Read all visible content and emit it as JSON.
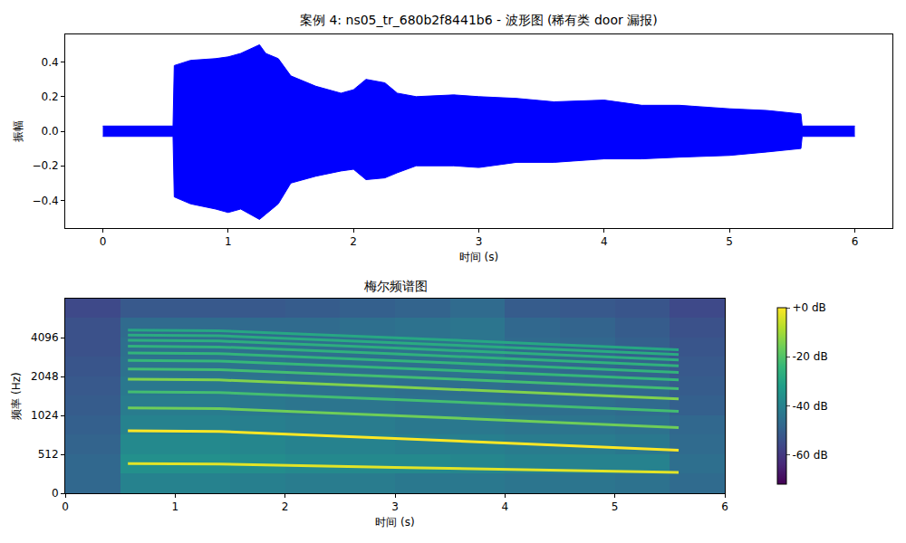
{
  "chart_data": [
    {
      "type": "area",
      "title": "案例 4: ns05_tr_680b2f8441b6 - 波形图 (稀有类 door 漏报)",
      "xlabel": "时间 (s)",
      "ylabel": "振幅",
      "color": "#0000ff",
      "x": [
        0,
        0.56,
        0.57,
        0.7,
        0.9,
        1.0,
        1.1,
        1.25,
        1.3,
        1.4,
        1.5,
        1.7,
        1.9,
        2.0,
        2.1,
        2.25,
        2.35,
        2.5,
        2.8,
        3.0,
        3.3,
        3.6,
        4.0,
        4.3,
        4.6,
        5.0,
        5.3,
        5.57,
        5.58,
        6.0
      ],
      "upper": [
        0.03,
        0.03,
        0.38,
        0.41,
        0.42,
        0.43,
        0.45,
        0.5,
        0.45,
        0.42,
        0.32,
        0.26,
        0.22,
        0.24,
        0.3,
        0.28,
        0.22,
        0.2,
        0.21,
        0.2,
        0.19,
        0.17,
        0.18,
        0.15,
        0.15,
        0.13,
        0.12,
        0.1,
        0.03,
        0.03
      ],
      "lower": [
        -0.03,
        -0.03,
        -0.38,
        -0.42,
        -0.45,
        -0.47,
        -0.45,
        -0.51,
        -0.48,
        -0.42,
        -0.3,
        -0.26,
        -0.23,
        -0.22,
        -0.28,
        -0.27,
        -0.24,
        -0.2,
        -0.2,
        -0.21,
        -0.18,
        -0.18,
        -0.16,
        -0.16,
        -0.15,
        -0.14,
        -0.12,
        -0.1,
        -0.03,
        -0.03
      ],
      "xlim": [
        -0.3,
        6.3
      ],
      "xticks": [
        0,
        1,
        2,
        3,
        4,
        5,
        6
      ],
      "ylim": [
        -0.56,
        0.56
      ],
      "yticks": [
        {
          "value": -0.4,
          "label": "−0.4"
        },
        {
          "value": -0.2,
          "label": "−0.2"
        },
        {
          "value": 0,
          "label": "0.0"
        },
        0.2,
        0.4
      ],
      "grid": false
    },
    {
      "type": "heatmap",
      "title": "梅尔频谱图",
      "xlabel": "时间 (s)",
      "ylabel": "频率 (Hz)",
      "color": "viridis",
      "xlim": [
        0,
        6
      ],
      "xticks": [
        0,
        1,
        2,
        3,
        4,
        5,
        6
      ],
      "ylim": [
        0,
        8192
      ],
      "yticks": [
        0,
        512,
        1024,
        2048,
        4096
      ],
      "grid": false,
      "colorbar": {
        "zlim": [
          -72,
          0
        ],
        "ticks": [
          {
            "value": 0,
            "label": "+0 dB"
          },
          {
            "value": -20,
            "label": "-20 dB"
          },
          {
            "value": -40,
            "label": "-40 dB"
          },
          {
            "value": -60,
            "label": "-60 dB"
          }
        ]
      },
      "cells": {
        "x": [
          0.25,
          0.75,
          1.25,
          1.75,
          2.25,
          2.75,
          3.25,
          3.75,
          4.25,
          4.75,
          5.25,
          5.75
        ],
        "y": [
          128,
          384,
          609,
          861,
          1218,
          1722,
          2435,
          3444,
          4871,
          6889
        ],
        "z": [
          [
            -48,
            -40,
            -40,
            -41,
            -42,
            -42,
            -43,
            -43,
            -44,
            -44,
            -45,
            -47
          ],
          [
            -48,
            -36,
            -36,
            -37,
            -38,
            -38,
            -38,
            -39,
            -40,
            -40,
            -40,
            -46
          ],
          [
            -49,
            -38,
            -38,
            -39,
            -40,
            -40,
            -41,
            -41,
            -42,
            -42,
            -43,
            -47
          ],
          [
            -50,
            -40,
            -40,
            -41,
            -42,
            -42,
            -43,
            -43,
            -44,
            -44,
            -45,
            -48
          ],
          [
            -51,
            -42,
            -42,
            -43,
            -44,
            -44,
            -45,
            -45,
            -46,
            -46,
            -47,
            -50
          ],
          [
            -52,
            -43,
            -43,
            -44,
            -45,
            -45,
            -46,
            -46,
            -47,
            -47,
            -48,
            -51
          ],
          [
            -53,
            -45,
            -45,
            -45,
            -46,
            -46,
            -46,
            -45,
            -47,
            -48,
            -49,
            -52
          ],
          [
            -54,
            -46,
            -46,
            -46,
            -46,
            -46,
            -45,
            -44,
            -47,
            -48,
            -50,
            -53
          ],
          [
            -54,
            -47,
            -47,
            -47,
            -47,
            -46,
            -45,
            -44,
            -48,
            -49,
            -51,
            -54
          ],
          [
            -56,
            -52,
            -52,
            -52,
            -51,
            -50,
            -49,
            -47,
            -51,
            -52,
            -53,
            -56
          ]
        ]
      },
      "harmonics": [
        {
          "db": -3,
          "x": [
            0.57,
            1.4,
            3.0,
            4.5,
            5.58
          ],
          "y": [
            390,
            385,
            340,
            300,
            275
          ]
        },
        {
          "db": 0,
          "x": [
            0.57,
            1.4,
            3.0,
            4.5,
            5.58
          ],
          "y": [
            780,
            770,
            680,
            600,
            550
          ]
        },
        {
          "db": -16,
          "x": [
            0.57,
            1.4,
            3.0,
            4.5,
            5.58
          ],
          "y": [
            1170,
            1155,
            1020,
            900,
            825
          ]
        },
        {
          "db": -22,
          "x": [
            0.57,
            1.4,
            3.0,
            4.5,
            5.58
          ],
          "y": [
            1560,
            1540,
            1360,
            1200,
            1100
          ]
        },
        {
          "db": -14,
          "x": [
            0.57,
            1.4,
            3.0,
            4.5,
            5.58
          ],
          "y": [
            1950,
            1925,
            1700,
            1500,
            1375
          ]
        },
        {
          "db": -22,
          "x": [
            0.57,
            1.4,
            3.0,
            4.5,
            5.58
          ],
          "y": [
            2340,
            2310,
            2040,
            1800,
            1650
          ]
        },
        {
          "db": -24,
          "x": [
            0.57,
            1.4,
            3.0,
            4.5,
            5.58
          ],
          "y": [
            2730,
            2695,
            2380,
            2100,
            1925
          ]
        },
        {
          "db": -25,
          "x": [
            0.57,
            1.4,
            3.0,
            4.5,
            5.58
          ],
          "y": [
            3120,
            3080,
            2720,
            2400,
            2200
          ]
        },
        {
          "db": -26,
          "x": [
            0.57,
            1.4,
            3.0,
            4.5,
            5.58
          ],
          "y": [
            3510,
            3465,
            3060,
            2700,
            2475
          ]
        },
        {
          "db": -27,
          "x": [
            0.57,
            1.4,
            3.0,
            4.5,
            5.58
          ],
          "y": [
            3900,
            3850,
            3400,
            3000,
            2750
          ]
        },
        {
          "db": -28,
          "x": [
            0.57,
            1.4,
            3.0,
            4.5,
            5.58
          ],
          "y": [
            4290,
            4235,
            3740,
            3300,
            3025
          ]
        },
        {
          "db": -29,
          "x": [
            0.57,
            1.4,
            3.0,
            4.5,
            5.58
          ],
          "y": [
            4680,
            4620,
            4080,
            3600,
            3300
          ]
        }
      ]
    }
  ]
}
